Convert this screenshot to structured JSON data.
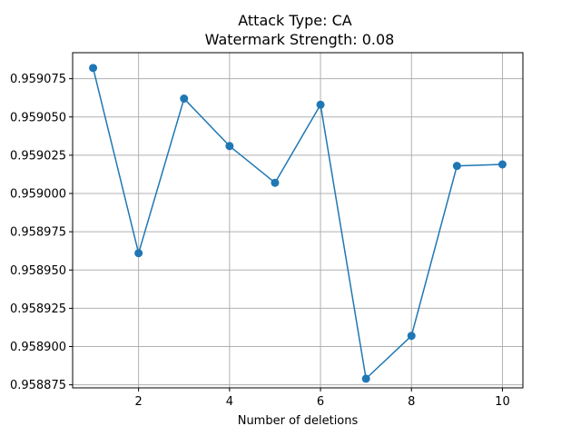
{
  "chart_data": {
    "type": "line",
    "title": "Attack Type: CA",
    "subtitle": "Watermark Strength: 0.08",
    "xlabel": "Number of deletions",
    "ylabel": "",
    "x": [
      1,
      2,
      3,
      4,
      5,
      6,
      7,
      8,
      9,
      10
    ],
    "series": [
      {
        "values": [
          0.959082,
          0.958961,
          0.959062,
          0.959031,
          0.959007,
          0.959058,
          0.958879,
          0.958907,
          0.959018,
          0.959019
        ],
        "color": "#1f77b4"
      }
    ],
    "xlim": [
      0.55,
      10.45
    ],
    "ylim": [
      0.958873,
      0.959092
    ],
    "xticks": [
      2,
      4,
      6,
      8,
      10
    ],
    "yticks": [
      0.958875,
      0.9589,
      0.958925,
      0.95895,
      0.958975,
      0.959,
      0.959025,
      0.95905,
      0.959075
    ],
    "ytick_labels": [
      "0.958875",
      "0.958900",
      "0.958925",
      "0.958950",
      "0.958975",
      "0.959000",
      "0.959025",
      "0.959050",
      "0.959075"
    ],
    "grid": true,
    "marker": "circle"
  }
}
